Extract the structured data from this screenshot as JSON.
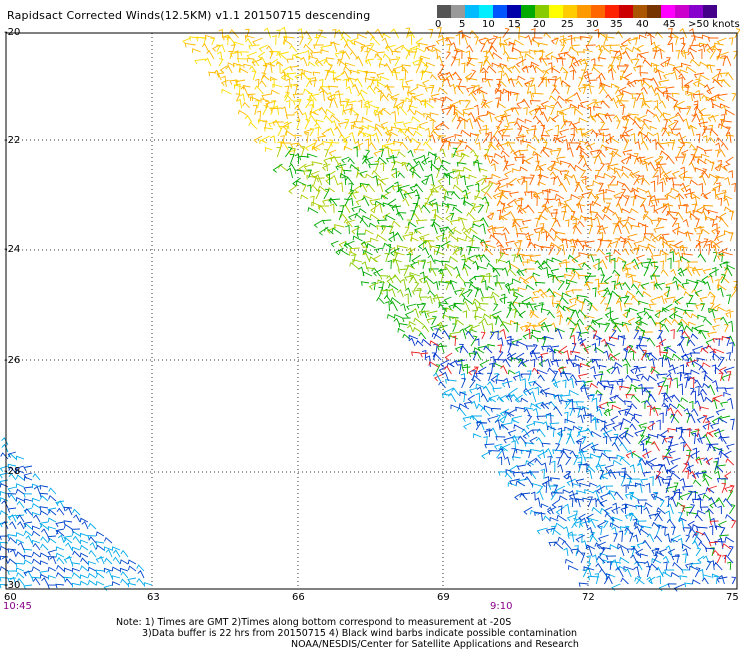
{
  "title": "Rapidsact Corrected Winds(12.5KM) v1.1 20150715 descending",
  "legend": {
    "labels": [
      "0",
      "5",
      "10",
      "15",
      "20",
      "25",
      "30",
      "35",
      "40",
      "45",
      ">50 knots"
    ],
    "colors": [
      "#555555",
      "#999999",
      "#00bbff",
      "#00eeff",
      "#0055ff",
      "#0000aa",
      "#00aa00",
      "#88cc00",
      "#ffff00",
      "#ffcc00",
      "#ff9900",
      "#ff6600",
      "#ff2200",
      "#cc0000",
      "#aa5500",
      "#773300",
      "#ff00ff",
      "#cc00cc",
      "#8800cc",
      "#440088"
    ]
  },
  "axes": {
    "lat_labels": [
      "-20",
      "-22",
      "-24",
      "-26",
      "-28",
      "-30"
    ],
    "lon_labels": [
      "60",
      "63",
      "66",
      "69",
      "72",
      "75"
    ]
  },
  "times": {
    "left": "10:45",
    "right": "9:10"
  },
  "notes": {
    "line1": "Note: 1) Times are GMT 2)Times along bottom correspond to measurement at -20S",
    "line2": "3)Data buffer is 22 hrs from 20150715 4) Black wind barbs indicate possible contamination",
    "line3": "NOAA/NESDIS/Center for Satellite Applications and Research"
  }
}
